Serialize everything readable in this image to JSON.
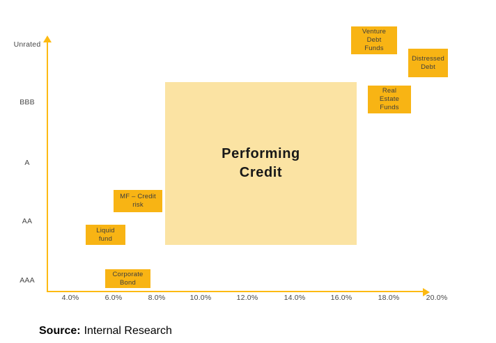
{
  "colors": {
    "axis": "#FDBA12",
    "item_box": "#F8B414",
    "region_box": "#FBE3A3",
    "tick_text": "#464646",
    "box_text": "#3D3D3D",
    "region_text": "#181818",
    "source_text": "#000000"
  },
  "axes": {
    "x": {
      "ticks": [
        "4.0%",
        "6.0%",
        "8.0%",
        "10.0%",
        "12.0%",
        "14.0%",
        "16.0%",
        "18.0%",
        "20.0%"
      ]
    },
    "y": {
      "ticks": [
        "Unrated",
        "BBB",
        "A",
        "AA",
        "AAA"
      ]
    }
  },
  "plot": {
    "region": {
      "label": "Performing\nCredit"
    },
    "boxes": [
      {
        "id": "corporate-bond",
        "label": "Corporate\nBond"
      },
      {
        "id": "liquid-fund",
        "label": "Liquid\nfund"
      },
      {
        "id": "mf-credit-risk",
        "label": "MF – Credit\nrisk"
      },
      {
        "id": "venture-debt-funds",
        "label": "Venture\nDebt\nFunds"
      },
      {
        "id": "distressed-debt",
        "label": "Distressed\nDebt"
      },
      {
        "id": "real-estate-funds",
        "label": "Real\nEstate\nFunds"
      }
    ]
  },
  "source": {
    "prefix": "Source:",
    "text": "Internal Research"
  },
  "chart_data": {
    "type": "scatter",
    "title": "",
    "xlabel": "",
    "ylabel": "",
    "x_ticks": [
      "4.0%",
      "6.0%",
      "8.0%",
      "10.0%",
      "12.0%",
      "14.0%",
      "16.0%",
      "18.0%",
      "20.0%"
    ],
    "y_ticks_bottom_to_top": [
      "AAA",
      "AA",
      "A",
      "BBB",
      "Unrated"
    ],
    "x_range_pct": [
      4,
      20
    ],
    "grid": false,
    "legend": "none",
    "items": [
      {
        "label": "Corporate Bond",
        "x_pct_range": [
          5.6,
          7.7
        ],
        "rating": "AAA–AA (near AAA)"
      },
      {
        "label": "Liquid fund",
        "x_pct_range": [
          4.7,
          6.5
        ],
        "rating": "AA–AAA (near AA)"
      },
      {
        "label": "MF – Credit risk",
        "x_pct_range": [
          6.0,
          8.3
        ],
        "rating": "AA–A"
      },
      {
        "label": "Performing Credit",
        "x_pct_range": [
          8.4,
          16.6
        ],
        "rating_range": [
          "AA",
          "BBB"
        ],
        "style": "large shaded region"
      },
      {
        "label": "Real Estate Funds",
        "x_pct_range": [
          17.1,
          18.9
        ],
        "rating": "BBB"
      },
      {
        "label": "Venture Debt Funds",
        "x_pct_range": [
          16.4,
          18.3
        ],
        "rating": "Unrated"
      },
      {
        "label": "Distressed Debt",
        "x_pct_range": [
          18.8,
          20.5
        ],
        "rating": "Unrated–BBB"
      }
    ],
    "source": "Source: Internal Research"
  }
}
